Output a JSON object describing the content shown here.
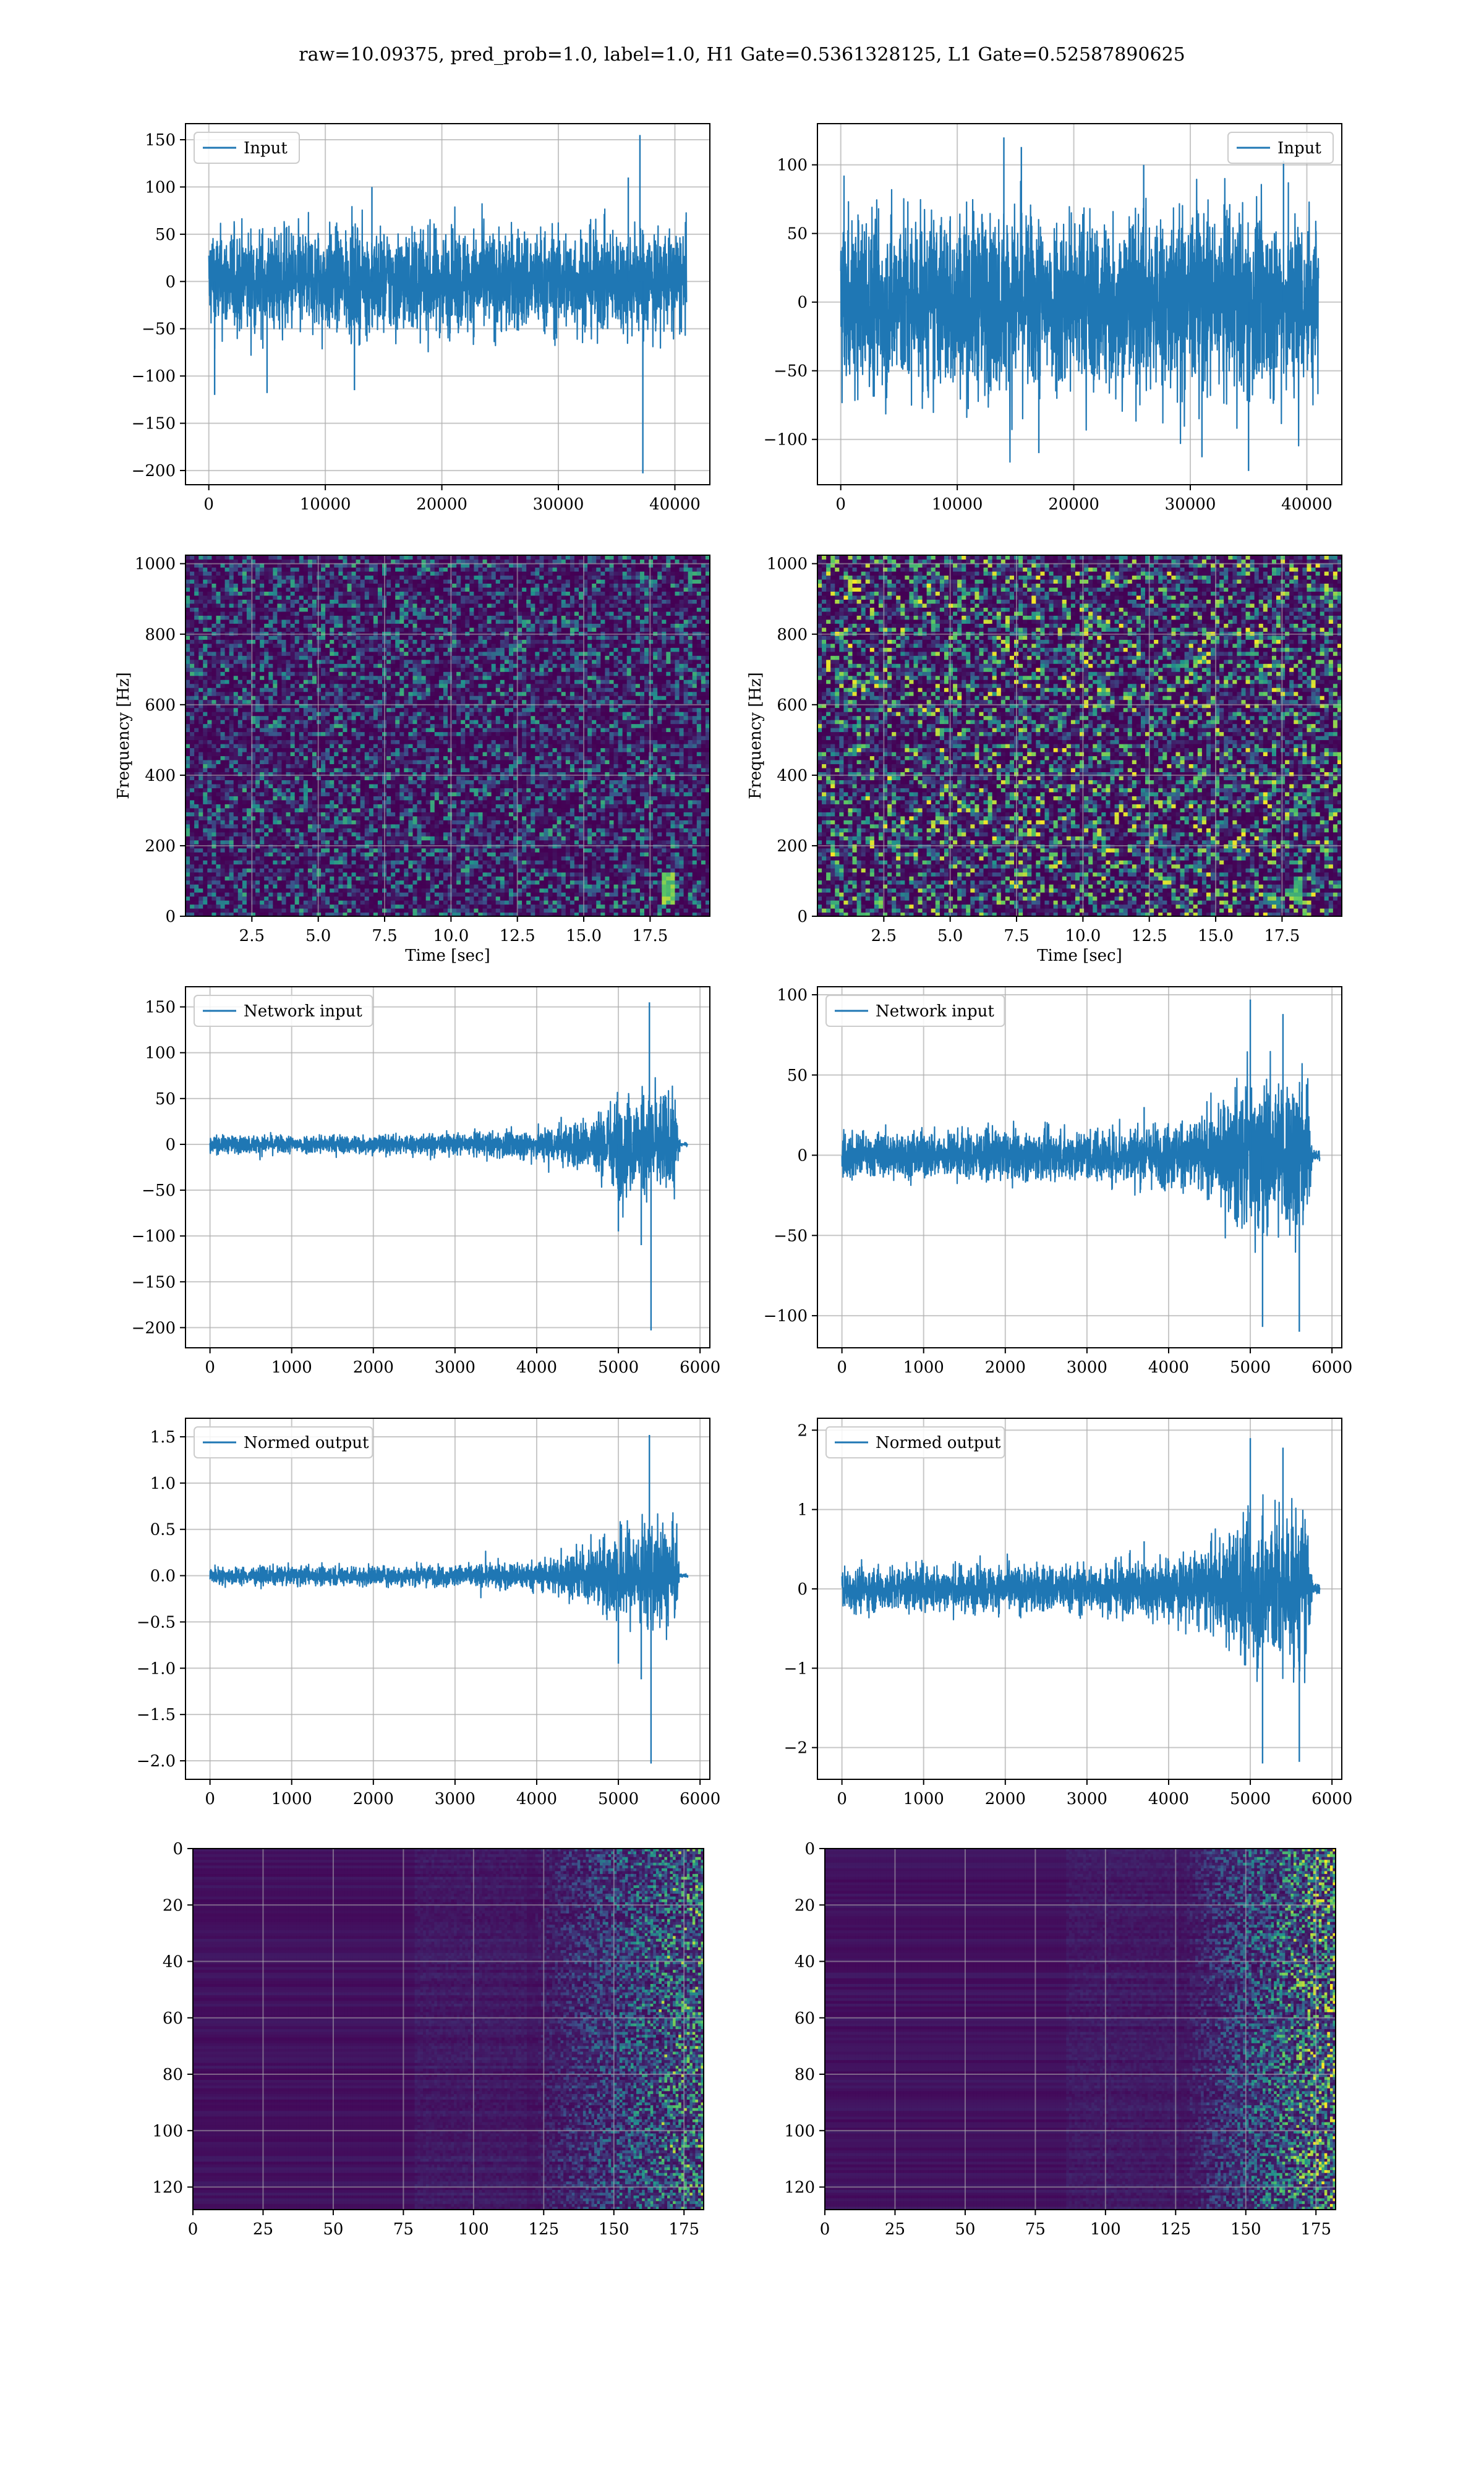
{
  "figure": {
    "suptitle": "raw=10.09375, pred_prob=1.0, label=1.0, H1 Gate=0.5361328125, L1 Gate=0.52587890625"
  },
  "colors": {
    "series": "#1f77b4",
    "grid": "#b0b0b0",
    "spine": "#000000",
    "viridis": [
      "#440154",
      "#3b528b",
      "#21918c",
      "#5ec962",
      "#fde725"
    ]
  },
  "chart_data": [
    {
      "panel": "row1-left",
      "type": "line",
      "style": "noise",
      "legend": "Input",
      "legend_loc": "upper left",
      "x_ticks": [
        0,
        10000,
        20000,
        30000,
        40000
      ],
      "y_ticks": [
        -200,
        -150,
        -100,
        -50,
        0,
        50,
        100,
        150
      ],
      "xlim": [
        -2000,
        43000
      ],
      "ylim": [
        -215,
        167
      ],
      "series": [
        {
          "points": [
            [
              0,
              0
            ],
            [
              41000,
              0
            ]
          ],
          "envelope": [
            [
              0,
              60
            ],
            [
              41000,
              60
            ]
          ],
          "spikes": [
            [
              37000,
              155
            ],
            [
              37250,
              -203
            ],
            [
              500,
              -120
            ],
            [
              5000,
              -118
            ],
            [
              12500,
              -115
            ],
            [
              36000,
              110
            ],
            [
              14000,
              100
            ]
          ]
        }
      ]
    },
    {
      "panel": "row1-right",
      "type": "line",
      "style": "noise",
      "legend": "Input",
      "legend_loc": "upper right",
      "x_ticks": [
        0,
        10000,
        20000,
        30000,
        40000
      ],
      "y_ticks": [
        -100,
        -50,
        0,
        50,
        100
      ],
      "xlim": [
        -2000,
        43000
      ],
      "ylim": [
        -133,
        130
      ],
      "series": [
        {
          "points": [
            [
              0,
              0
            ],
            [
              41000,
              0
            ]
          ],
          "envelope": [
            [
              0,
              72
            ],
            [
              41000,
              72
            ]
          ],
          "spikes": [
            [
              14000,
              120
            ],
            [
              15500,
              113
            ],
            [
              26000,
              100
            ],
            [
              35000,
              -123
            ],
            [
              17000,
              -110
            ],
            [
              38000,
              103
            ],
            [
              31000,
              -113
            ]
          ]
        }
      ]
    },
    {
      "panel": "row2-left",
      "type": "heatmap",
      "style": "spectrogram",
      "xlabel": "Time [sec]",
      "ylabel": "Frequency [Hz]",
      "x_ticks": [
        2.5,
        5.0,
        7.5,
        10.0,
        12.5,
        15.0,
        17.5
      ],
      "y_ticks": [
        0,
        200,
        400,
        600,
        800,
        1000
      ],
      "xlim": [
        0,
        19.75
      ],
      "ylim": [
        0,
        1024
      ],
      "noise_level": 0.35,
      "features": [
        {
          "x": 18.2,
          "y0": 30,
          "y1": 120,
          "value": 1.0
        }
      ]
    },
    {
      "panel": "row2-right",
      "type": "heatmap",
      "style": "spectrogram",
      "xlabel": "Time [sec]",
      "ylabel": "Frequency [Hz]",
      "x_ticks": [
        2.5,
        5.0,
        7.5,
        10.0,
        12.5,
        15.0,
        17.5
      ],
      "y_ticks": [
        0,
        200,
        400,
        600,
        800,
        1000
      ],
      "xlim": [
        0,
        19.75
      ],
      "ylim": [
        0,
        1024
      ],
      "noise_level": 0.55,
      "features": [
        {
          "x": 18.1,
          "y0": 30,
          "y1": 110,
          "value": 0.85
        }
      ]
    },
    {
      "panel": "row3-left",
      "type": "line",
      "style": "chirp",
      "legend": "Network input",
      "legend_loc": "upper left",
      "x_ticks": [
        0,
        1000,
        2000,
        3000,
        4000,
        5000,
        6000
      ],
      "y_ticks": [
        -200,
        -150,
        -100,
        -50,
        0,
        50,
        100,
        150
      ],
      "xlim": [
        -300,
        6120
      ],
      "ylim": [
        -222,
        172
      ],
      "series": [
        {
          "points": [
            [
              0,
              0
            ],
            [
              5850,
              0
            ]
          ],
          "envelope": [
            [
              0,
              10
            ],
            [
              3000,
              12
            ],
            [
              4000,
              18
            ],
            [
              4600,
              30
            ],
            [
              5000,
              58
            ],
            [
              5500,
              60
            ],
            [
              5700,
              55
            ],
            [
              5760,
              2
            ],
            [
              5850,
              2
            ]
          ],
          "spikes": [
            [
              5380,
              155
            ],
            [
              5400,
              -203
            ],
            [
              5280,
              -110
            ],
            [
              5000,
              -95
            ],
            [
              4300,
              30
            ]
          ]
        }
      ]
    },
    {
      "panel": "row3-right",
      "type": "line",
      "style": "chirp",
      "legend": "Network input",
      "legend_loc": "upper left",
      "x_ticks": [
        0,
        1000,
        2000,
        3000,
        4000,
        5000,
        6000
      ],
      "y_ticks": [
        -100,
        -50,
        0,
        50,
        100
      ],
      "xlim": [
        -300,
        6120
      ],
      "ylim": [
        -120,
        105
      ],
      "series": [
        {
          "points": [
            [
              0,
              0
            ],
            [
              5850,
              0
            ]
          ],
          "envelope": [
            [
              0,
              15
            ],
            [
              3000,
              17
            ],
            [
              4000,
              22
            ],
            [
              4600,
              30
            ],
            [
              4900,
              50
            ],
            [
              5500,
              55
            ],
            [
              5700,
              52
            ],
            [
              5760,
              4
            ],
            [
              5850,
              4
            ]
          ],
          "spikes": [
            [
              5000,
              97
            ],
            [
              5150,
              -107
            ],
            [
              5600,
              -110
            ],
            [
              5400,
              88
            ],
            [
              3700,
              30
            ]
          ]
        }
      ]
    },
    {
      "panel": "row4-left",
      "type": "line",
      "style": "chirp",
      "legend": "Normed output",
      "legend_loc": "upper left",
      "x_ticks": [
        0,
        1000,
        2000,
        3000,
        4000,
        5000,
        6000
      ],
      "y_ticks": [
        -2.0,
        -1.5,
        -1.0,
        -0.5,
        0.0,
        0.5,
        1.0,
        1.5
      ],
      "xlim": [
        -300,
        6120
      ],
      "ylim": [
        -2.2,
        1.7
      ],
      "series": [
        {
          "points": [
            [
              0,
              0
            ],
            [
              5850,
              0
            ]
          ],
          "envelope": [
            [
              0,
              0.1
            ],
            [
              3000,
              0.12
            ],
            [
              4000,
              0.17
            ],
            [
              4600,
              0.3
            ],
            [
              5000,
              0.58
            ],
            [
              5500,
              0.6
            ],
            [
              5700,
              0.55
            ],
            [
              5760,
              0.02
            ],
            [
              5850,
              0.02
            ]
          ],
          "spikes": [
            [
              5380,
              1.52
            ],
            [
              5400,
              -2.03
            ],
            [
              5280,
              -1.12
            ],
            [
              5000,
              -0.95
            ],
            [
              4300,
              0.3
            ]
          ]
        }
      ]
    },
    {
      "panel": "row4-right",
      "type": "line",
      "style": "chirp",
      "legend": "Normed output",
      "legend_loc": "upper left",
      "x_ticks": [
        0,
        1000,
        2000,
        3000,
        4000,
        5000,
        6000
      ],
      "y_ticks": [
        -2,
        -1,
        0,
        1,
        2
      ],
      "xlim": [
        -300,
        6120
      ],
      "ylim": [
        -2.4,
        2.15
      ],
      "series": [
        {
          "points": [
            [
              0,
              0
            ],
            [
              5850,
              0
            ]
          ],
          "envelope": [
            [
              0,
              0.3
            ],
            [
              3000,
              0.33
            ],
            [
              4000,
              0.42
            ],
            [
              4600,
              0.6
            ],
            [
              4900,
              1.0
            ],
            [
              5500,
              1.1
            ],
            [
              5700,
              1.05
            ],
            [
              5760,
              0.08
            ],
            [
              5850,
              0.08
            ]
          ],
          "spikes": [
            [
              5000,
              1.9
            ],
            [
              5150,
              -2.2
            ],
            [
              5600,
              -2.18
            ],
            [
              5400,
              1.78
            ],
            [
              3700,
              0.6
            ]
          ]
        }
      ]
    },
    {
      "panel": "row5-left",
      "type": "heatmap",
      "style": "activations",
      "x_ticks": [
        0,
        25,
        50,
        75,
        100,
        125,
        150,
        175
      ],
      "y_ticks": [
        0,
        20,
        40,
        60,
        80,
        100,
        120
      ],
      "xlim": [
        0,
        182
      ],
      "ylim": [
        128,
        0
      ],
      "onset": 118,
      "noise_level": 0.4
    },
    {
      "panel": "row5-right",
      "type": "heatmap",
      "style": "activations",
      "x_ticks": [
        0,
        25,
        50,
        75,
        100,
        125,
        150,
        175
      ],
      "y_ticks": [
        0,
        20,
        40,
        60,
        80,
        100,
        120
      ],
      "xlim": [
        0,
        182
      ],
      "ylim": [
        128,
        0
      ],
      "onset": 125,
      "noise_level": 0.5
    }
  ]
}
